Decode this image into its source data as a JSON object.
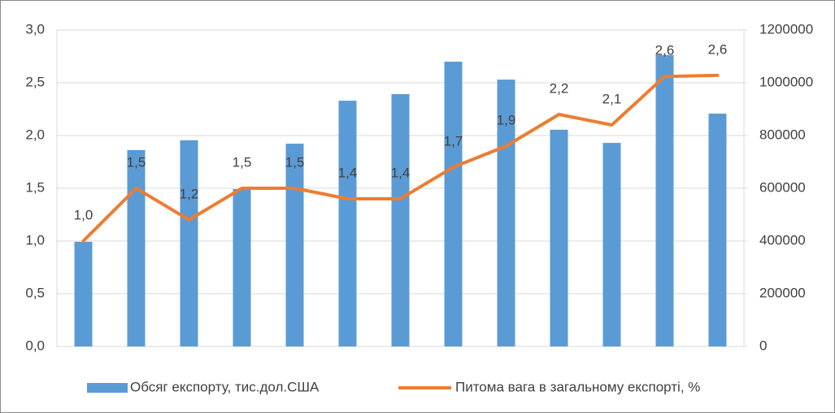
{
  "chart_data": {
    "type": "bar_line",
    "categories": [
      null,
      null,
      null,
      null,
      null,
      null,
      null,
      null,
      null,
      null,
      null,
      null,
      null
    ],
    "series": [
      {
        "name": "Обсяг експорту, тис.дол.США",
        "type": "bar",
        "axis": "y2",
        "color": "#5b9bd5",
        "values": [
          397000,
          745000,
          782000,
          597000,
          769000,
          932000,
          957000,
          1080000,
          1012000,
          822000,
          772000,
          1105000,
          883000
        ]
      },
      {
        "name": "Питома вага в загальному експорті, %",
        "type": "line",
        "axis": "y",
        "color": "#ed7d31",
        "values": [
          1.0,
          1.5,
          1.2,
          1.5,
          1.5,
          1.4,
          1.4,
          1.7,
          1.9,
          2.2,
          2.1,
          2.56,
          2.57
        ],
        "value_labels": [
          "1,0",
          "1,5",
          "1,2",
          "1,5",
          "1,5",
          "1,4",
          "1,4",
          "1,7",
          "1,9",
          "2,2",
          "2,1",
          "2,6",
          "2,6"
        ]
      }
    ],
    "ylim": [
      0,
      3
    ],
    "yticks": [
      {
        "value": 0,
        "label": "0,0"
      },
      {
        "value": 0.5,
        "label": "0,5"
      },
      {
        "value": 1,
        "label": "1,0"
      },
      {
        "value": 1.5,
        "label": "1,5"
      },
      {
        "value": 2,
        "label": "2,0"
      },
      {
        "value": 2.5,
        "label": "2,5"
      },
      {
        "value": 3,
        "label": "3,0"
      }
    ],
    "y2lim": [
      0,
      1200000
    ],
    "y2ticks": [
      0,
      200000,
      400000,
      600000,
      800000,
      1000000,
      1200000
    ],
    "grid": true,
    "legend": "bottom"
  }
}
